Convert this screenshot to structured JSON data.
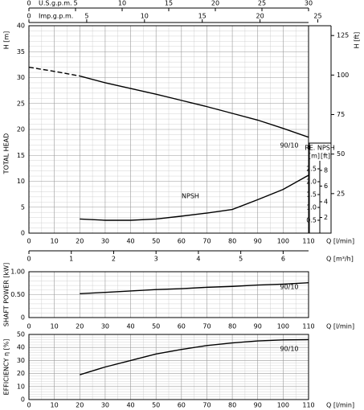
{
  "chart_data": [
    {
      "type": "line",
      "ylabel": "H [m]",
      "side_label": "TOTAL HEAD",
      "ylim": [
        0,
        40
      ],
      "yticks": [
        0,
        5,
        10,
        15,
        20,
        25,
        30,
        35,
        40
      ],
      "y2label": "H [ft]",
      "y2lim": [
        0,
        131.2
      ],
      "y2ticks": [
        25,
        50,
        75,
        100,
        125
      ],
      "xlabel": "Q [l/min]",
      "xlim": [
        0,
        110
      ],
      "xticks": [
        0,
        10,
        20,
        30,
        40,
        50,
        60,
        70,
        80,
        90,
        100,
        110
      ],
      "top_axes": [
        {
          "label": "U.S.g.p.m.",
          "lim": [
            0,
            30
          ],
          "ticks": [
            0,
            5,
            10,
            15,
            20,
            25,
            30
          ]
        },
        {
          "label": "Imp.g.p.m.",
          "lim": [
            0,
            24.2
          ],
          "ticks": [
            0,
            5,
            10,
            15,
            20,
            25
          ]
        }
      ],
      "bottom_axis": {
        "label": "Q [m³/h]",
        "lim": [
          0,
          6.6
        ],
        "ticks": [
          0,
          1,
          2,
          3,
          4,
          5,
          6
        ]
      },
      "npsh_axis": {
        "title": "RE. NPSH",
        "units": [
          "[m]",
          "[ft]"
        ],
        "ylim": [
          0,
          2.5
        ],
        "yticks": [
          0.5,
          {
            "value": 1,
            "label": "1.0"
          },
          1.5,
          {
            "value": 2,
            "label": "2.0"
          },
          2.5
        ],
        "ftlim": [
          0,
          8.2
        ],
        "ftticks": [
          2,
          4,
          6,
          8
        ]
      },
      "series": [
        {
          "name": "90/10",
          "x": [
            20,
            30,
            40,
            50,
            60,
            70,
            80,
            90,
            100,
            110
          ],
          "values": [
            30.3,
            29,
            27.9,
            26.8,
            25.6,
            24.4,
            23.1,
            21.8,
            20.2,
            18.5
          ]
        },
        {
          "x": [
            0,
            10,
            20
          ],
          "values": [
            32,
            31.2,
            30.3
          ],
          "dashed": true
        },
        {
          "name": "NPSH",
          "axis": "npsh",
          "x": [
            20,
            30,
            40,
            50,
            60,
            70,
            80,
            90,
            100,
            110
          ],
          "values": [
            0.55,
            0.5,
            0.5,
            0.55,
            0.66,
            0.78,
            0.92,
            1.3,
            1.7,
            2.25
          ]
        }
      ],
      "grid": true,
      "minor_grid": true
    },
    {
      "type": "line",
      "ylabel": "SHAFT POWER [kW]",
      "ylim": [
        0,
        1
      ],
      "yticks": [
        0,
        {
          "value": 0.5,
          "label": "0.50"
        },
        {
          "value": 1,
          "label": "1.00"
        }
      ],
      "xlabel": "Q [l/min]",
      "xlim": [
        0,
        110
      ],
      "xticks": [
        0,
        10,
        20,
        30,
        40,
        50,
        60,
        70,
        80,
        90,
        100,
        110
      ],
      "series": [
        {
          "name": "90/10",
          "x": [
            20,
            30,
            40,
            50,
            60,
            70,
            80,
            90,
            100,
            110
          ],
          "values": [
            0.52,
            0.55,
            0.58,
            0.61,
            0.63,
            0.66,
            0.68,
            0.71,
            0.73,
            0.76
          ]
        }
      ],
      "grid": true,
      "minor_grid": true
    },
    {
      "type": "line",
      "ylabel": "EFFICIENCY η [%]",
      "ylim": [
        0,
        50
      ],
      "yticks": [
        0,
        10,
        20,
        30,
        40,
        50
      ],
      "xlabel": "Q [l/min]",
      "xlim": [
        0,
        110
      ],
      "xticks": [
        0,
        10,
        20,
        30,
        40,
        50,
        60,
        70,
        80,
        90,
        100,
        110
      ],
      "series": [
        {
          "name": "90/10",
          "x": [
            20,
            30,
            40,
            50,
            60,
            70,
            80,
            90,
            100,
            110
          ],
          "values": [
            19,
            25,
            30,
            35,
            38.5,
            41.5,
            43.5,
            45,
            45.8,
            46
          ]
        }
      ],
      "grid": true,
      "minor_grid": true
    }
  ]
}
